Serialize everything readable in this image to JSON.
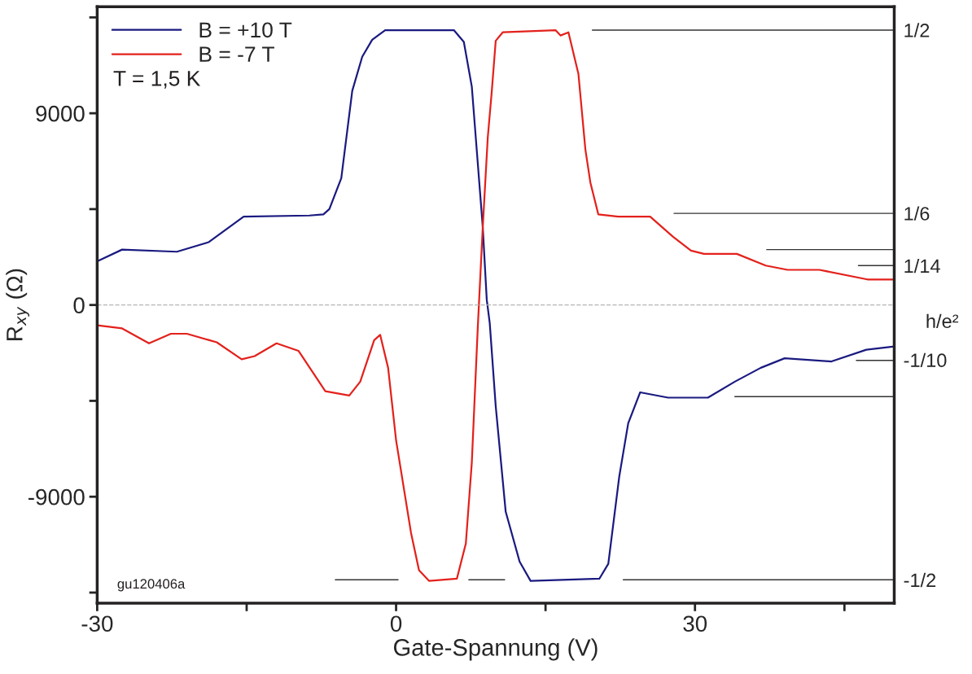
{
  "chart_data": {
    "type": "line",
    "xlabel": "Gate-Spannung (V)",
    "ylabel": "R$_{xy}$ (Ω)",
    "y2label": "h/e²",
    "xlim": [
      -30,
      50
    ],
    "xticks": [
      -30,
      {
        "value": -15,
        "label": null
      },
      0,
      {
        "value": 15,
        "label": null
      },
      30,
      {
        "value": 45,
        "label": null
      }
    ],
    "ylim": [
      -14000,
      14000
    ],
    "yticks": [
      {
        "value": -13500,
        "label": null
      },
      -9000,
      {
        "value": -4500,
        "label": null
      },
      0,
      {
        "value": 4500,
        "label": null
      },
      9000,
      {
        "value": 13500,
        "label": null
      }
    ],
    "y2lim": [
      -0.5424,
      0.5424
    ],
    "y2ticks": [
      {
        "value": 0.5,
        "label": "1/2"
      },
      {
        "value": 0.1667,
        "label": "1/6"
      },
      {
        "value": 0.0714,
        "label": "1/14"
      },
      {
        "value": -0.1,
        "label": "-1/10"
      },
      {
        "value": -0.5,
        "label": "-1/2"
      }
    ],
    "legend": "top left",
    "grid": false,
    "ref_lines": [
      {
        "axis": "y",
        "value": 0,
        "color": "#b4b4b4",
        "line_style": "dashed"
      }
    ],
    "annotations": [
      "T = 1,5 K",
      "gu120406a"
    ],
    "series": [
      {
        "name": "B = +10 T",
        "color": "#1a1a80",
        "x": [
          -30,
          -27.5,
          -22.0,
          -18.8,
          -15.3,
          -8.7,
          -7.3,
          -6.7,
          -5.5,
          -4.4,
          -3.4,
          -2.4,
          -1.1,
          5.8,
          6.8,
          7.6,
          8.0,
          8.7,
          9.1,
          9.4,
          10.0,
          11.0,
          12.4,
          13.5,
          20.4,
          21.3,
          22.4,
          23.3,
          24.5,
          27.3,
          31.3,
          34.0,
          36.6,
          39.0,
          43.7,
          47.2,
          50.0
        ],
        "values": [
          2050,
          2600,
          2500,
          2950,
          4150,
          4200,
          4250,
          4500,
          5950,
          10050,
          11650,
          12450,
          12900,
          12900,
          12350,
          10250,
          7850,
          3650,
          250,
          -850,
          -4750,
          -9700,
          -12050,
          -12950,
          -12850,
          -12150,
          -8050,
          -5550,
          -4100,
          -4350,
          -4350,
          -3600,
          -2950,
          -2500,
          -2650,
          -2100,
          -1950
        ]
      },
      {
        "name": "B = -7 T",
        "color": "#e3211c",
        "x": [
          -30,
          -27.5,
          -24.8,
          -22.6,
          -21.0,
          -18.0,
          -15.5,
          -14.2,
          -12.0,
          -9.8,
          -7.1,
          -4.7,
          -3.6,
          -2.2,
          -1.6,
          -0.8,
          0.0,
          1.5,
          2.3,
          3.3,
          6.1,
          7.0,
          7.6,
          8.2,
          8.7,
          9.2,
          9.6,
          10.0,
          10.7,
          16.0,
          16.5,
          17.3,
          18.3,
          19.0,
          19.5,
          20.3,
          22.3,
          25.5,
          27.8,
          29.6,
          30.9,
          34.2,
          37.1,
          39.3,
          42.5,
          47.3,
          50.0
        ],
        "values": [
          -950,
          -1100,
          -1800,
          -1350,
          -1350,
          -1750,
          -2550,
          -2400,
          -1800,
          -2150,
          -4050,
          -4250,
          -3600,
          -1650,
          -1400,
          -2950,
          -6350,
          -10700,
          -12450,
          -12950,
          -12850,
          -11200,
          -7400,
          -1050,
          3650,
          7850,
          10000,
          12400,
          12800,
          12900,
          12650,
          12800,
          10850,
          7300,
          5750,
          4250,
          4150,
          4150,
          3200,
          2550,
          2400,
          2400,
          1850,
          1650,
          1650,
          1200,
          1200
        ]
      },
      {
        "color": "#333333",
        "x": [
          19.7,
          50
        ],
        "values": [
          12900,
          12900
        ]
      },
      {
        "color": "#333333",
        "x": [
          27.9,
          50
        ],
        "values": [
          4300,
          4300
        ]
      },
      {
        "color": "#333333",
        "x": [
          37.2,
          50
        ],
        "values": [
          2600,
          2600
        ]
      },
      {
        "color": "#333333",
        "x": [
          46.4,
          50
        ],
        "values": [
          1850,
          1850
        ]
      },
      {
        "color": "#333333",
        "x": [
          46.2,
          50
        ],
        "values": [
          -2600,
          -2600
        ]
      },
      {
        "color": "#333333",
        "x": [
          34.0,
          50
        ],
        "values": [
          -4300,
          -4300
        ]
      },
      {
        "color": "#333333",
        "x": [
          -6.1,
          0.2
        ],
        "values": [
          -12900,
          -12900
        ]
      },
      {
        "color": "#333333",
        "x": [
          7.3,
          10.9
        ],
        "values": [
          -12900,
          -12900
        ]
      },
      {
        "color": "#333333",
        "x": [
          22.8,
          50
        ],
        "values": [
          -12900,
          -12900
        ]
      }
    ]
  }
}
